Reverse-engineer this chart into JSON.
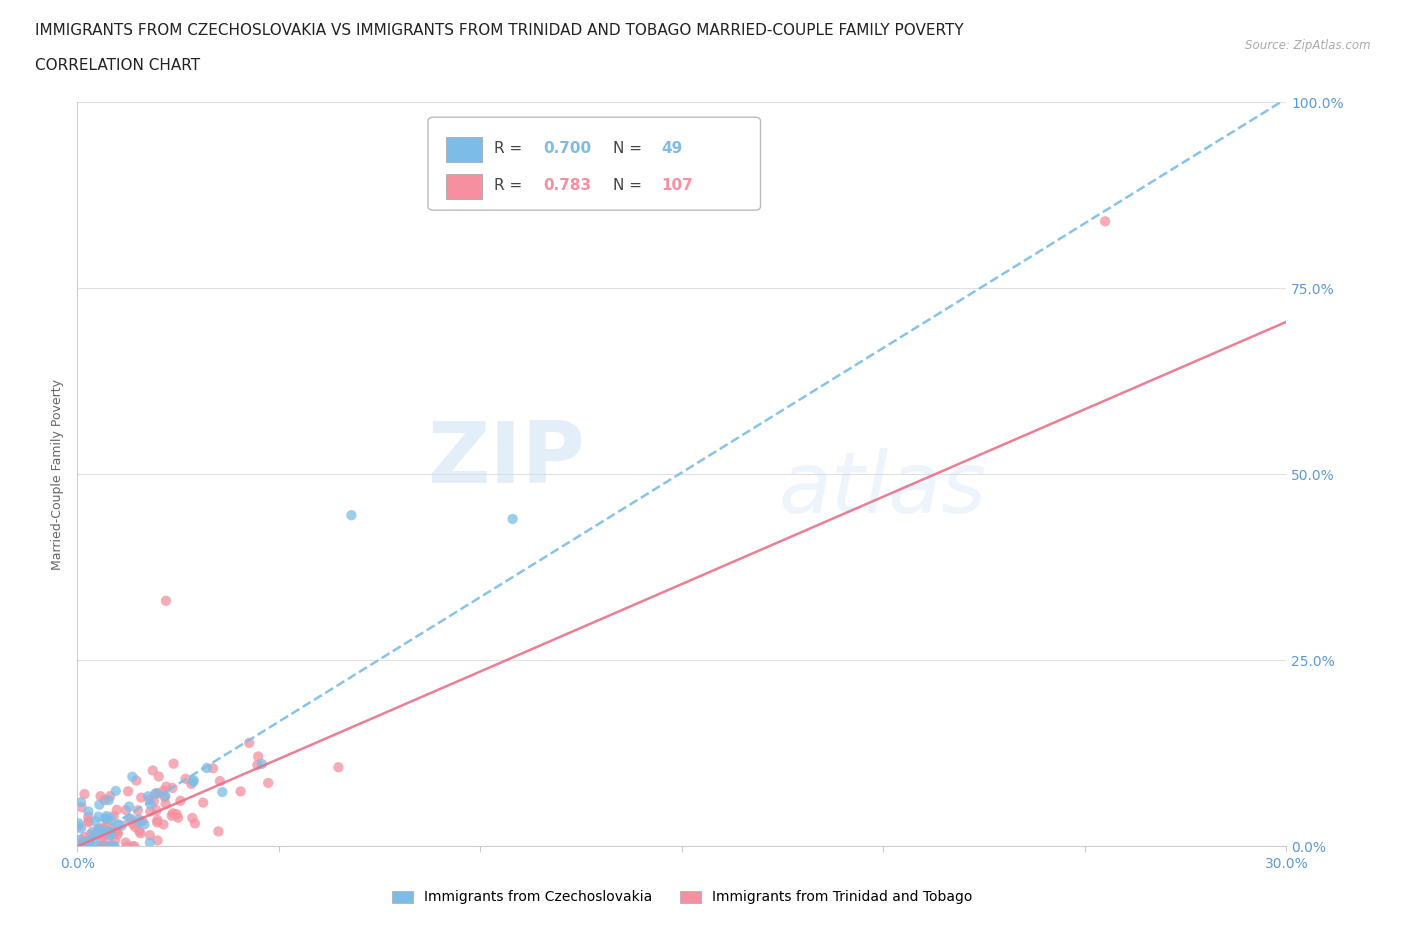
{
  "title_line1": "IMMIGRANTS FROM CZECHOSLOVAKIA VS IMMIGRANTS FROM TRINIDAD AND TOBAGO MARRIED-COUPLE FAMILY POVERTY",
  "title_line2": "CORRELATION CHART",
  "source_text": "Source: ZipAtlas.com",
  "ylabel": "Married-Couple Family Poverty",
  "xmin": 0.0,
  "xmax": 0.3,
  "ymin": 0.0,
  "ymax": 1.0,
  "color_blue": "#7bbde8",
  "color_pink": "#f4909f",
  "color_blue_line": "#7bbde8",
  "color_pink_line": "#e8718a",
  "legend_R1": "0.700",
  "legend_N1": "49",
  "legend_R2": "0.783",
  "legend_N2": "107",
  "label1": "Immigrants from Czechoslovakia",
  "label2": "Immigrants from Trinidad and Tobago",
  "watermark_zip": "ZIP",
  "watermark_atlas": "atlas",
  "title_fontsize": 11,
  "axis_label_fontsize": 9,
  "tick_fontsize": 10,
  "tick_color": "#5b9bd5",
  "axis_color": "#cccccc",
  "grid_color": "#e0e0e0",
  "background_color": "#ffffff",
  "blue_line_slope": 3.35,
  "blue_line_intercept": 0.0,
  "pink_line_slope": 2.35,
  "pink_line_intercept": 0.0
}
